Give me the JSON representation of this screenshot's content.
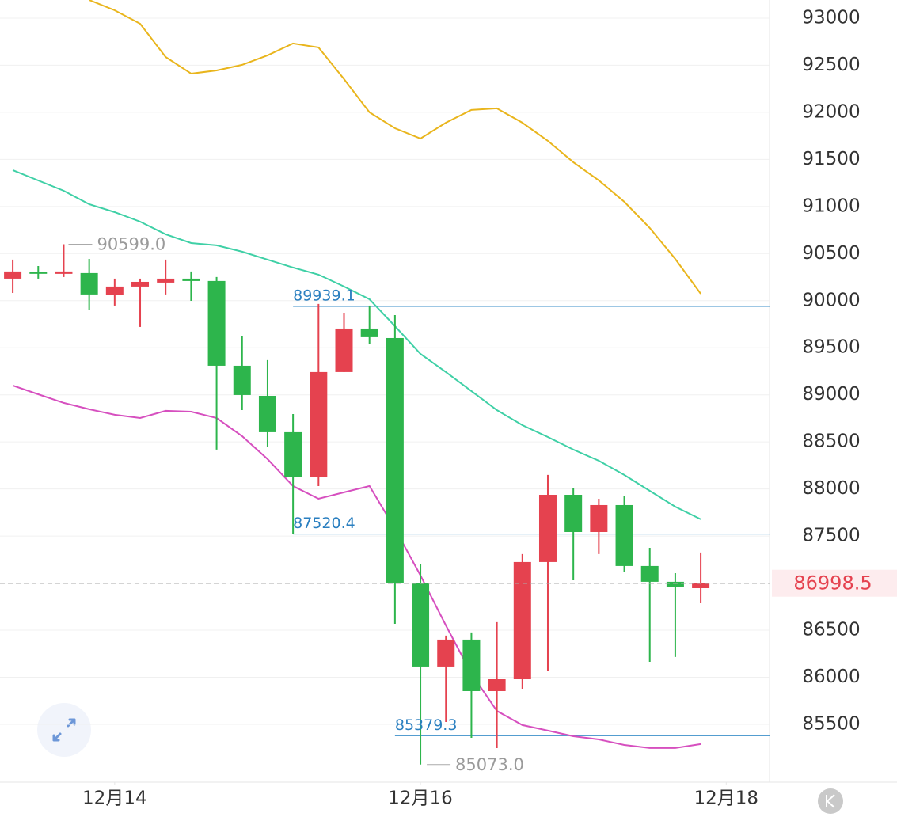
{
  "chart_data": {
    "type": "candlestick",
    "open": [
      90234,
      90302,
      90285,
      90293,
      90057,
      90150,
      90192,
      90234,
      90209,
      89309,
      88989,
      88603,
      88123,
      89242,
      89704,
      89603,
      86997,
      86114,
      86400,
      85853,
      85979,
      87224,
      87938,
      87543,
      87829,
      87182,
      87014,
      86946
    ],
    "high": [
      90436,
      90368,
      90599.0,
      90444,
      90234,
      90234,
      90436,
      90310,
      90251,
      89628,
      89368,
      88796,
      89965,
      89872,
      89948,
      89847,
      87207,
      86442,
      86476,
      86585,
      87308,
      88149,
      88014,
      87896,
      87930,
      87375,
      87106,
      87325
    ],
    "low": [
      90082,
      90234,
      90251,
      89898,
      89948,
      89721,
      90066,
      89998,
      88418,
      88838,
      88443,
      87520.4,
      88031,
      89242,
      89536,
      86568,
      85073.0,
      85525,
      85357,
      85248,
      85878,
      86064,
      87030,
      87308,
      87115,
      86164,
      86215,
      86786
    ],
    "close": [
      90310,
      90294,
      90310,
      90066,
      90150,
      90200,
      90234,
      90209,
      89309,
      88998,
      88603,
      88123,
      89242,
      89704,
      89612,
      87005,
      86114,
      86400,
      85853,
      85979,
      87224,
      87938,
      87543,
      87829,
      87182,
      87014,
      86955,
      86998.5
    ],
    "up_color": "#e5424f",
    "down_color": "#2db54c",
    "lines": [
      {
        "color": "#e9b51c",
        "values": [
          null,
          null,
          null,
          93193,
          93084,
          92941,
          92588,
          92411,
          92445,
          92504,
          92605,
          92731,
          92689,
          92353,
          92000,
          91831,
          91722,
          91890,
          92025,
          92042,
          91890,
          91697,
          91470,
          91277,
          91050,
          90772,
          90444,
          90074
        ]
      },
      {
        "color": "#3fd0a6",
        "values": [
          91386,
          91276,
          91167,
          91024,
          90940,
          90839,
          90705,
          90612,
          90587,
          90520,
          90436,
          90352,
          90276,
          90150,
          90015,
          89729,
          89435,
          89242,
          89040,
          88838,
          88678,
          88552,
          88418,
          88300,
          88149,
          87980,
          87812,
          87678
        ]
      },
      {
        "color": "#d64fbf",
        "values": [
          89099,
          89006,
          88914,
          88847,
          88788,
          88754,
          88830,
          88821,
          88754,
          88561,
          88317,
          88031,
          87896,
          87964,
          88031,
          87577,
          87081,
          86551,
          86038,
          85643,
          85492,
          85433,
          85374,
          85340,
          85281,
          85248,
          85248,
          85290
        ]
      }
    ],
    "levels": [
      89939.1,
      87520.4,
      85379.3
    ],
    "max_label": "90599.0",
    "min_label": "85073.0",
    "last_price": 86998.5,
    "ylim": [
      84886,
      93193
    ],
    "yticks": [
      85500,
      86000,
      86500,
      87000,
      87500,
      88000,
      88500,
      89000,
      89500,
      90000,
      90500,
      91000,
      91500,
      92000,
      92500,
      93000
    ],
    "xlim": [
      -0.5,
      29.7
    ],
    "xticks": [
      {
        "value": 4,
        "label": "12月14"
      },
      {
        "value": 16,
        "label": "12月16"
      },
      {
        "value": 28,
        "label": "12月18"
      }
    ],
    "grid": true
  }
}
